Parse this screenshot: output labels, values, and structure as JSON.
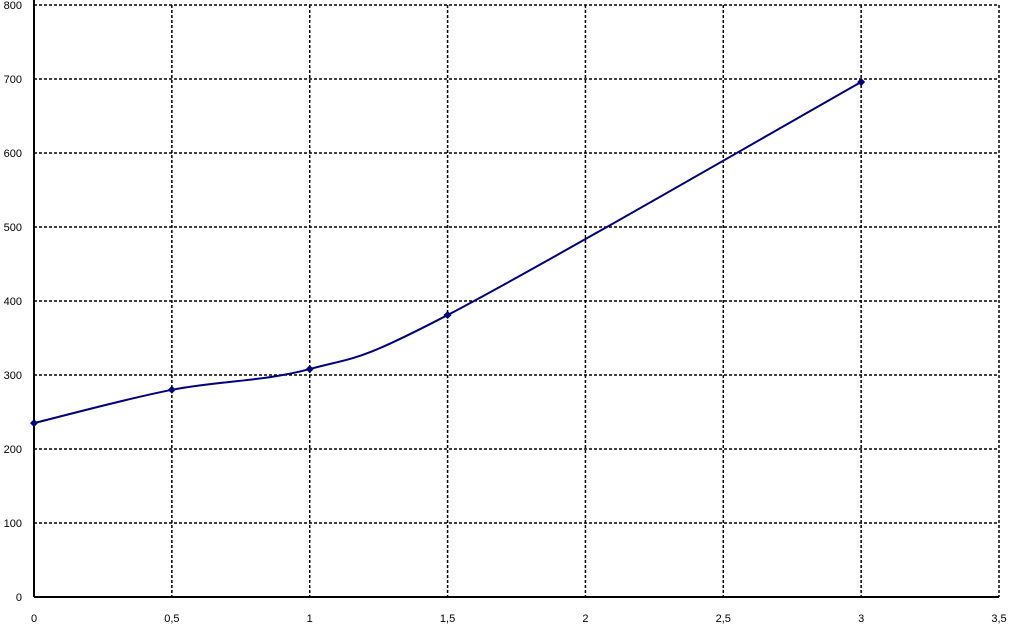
{
  "chart_data": {
    "type": "line",
    "title": "",
    "xlabel": "",
    "ylabel": "",
    "xlim": [
      0,
      3.5
    ],
    "ylim": [
      0,
      800
    ],
    "x_ticks": [
      "0",
      "0,5",
      "1",
      "1,5",
      "2",
      "2,5",
      "3",
      "3,5"
    ],
    "y_ticks": [
      "0",
      "100",
      "200",
      "300",
      "400",
      "500",
      "600",
      "700",
      "800"
    ],
    "grid": true,
    "smoothed": true,
    "line_color": "#000080",
    "series": [
      {
        "x": [
          0,
          0.5,
          1,
          1.5,
          3
        ],
        "values": [
          235,
          280,
          308,
          381,
          696
        ]
      }
    ]
  }
}
